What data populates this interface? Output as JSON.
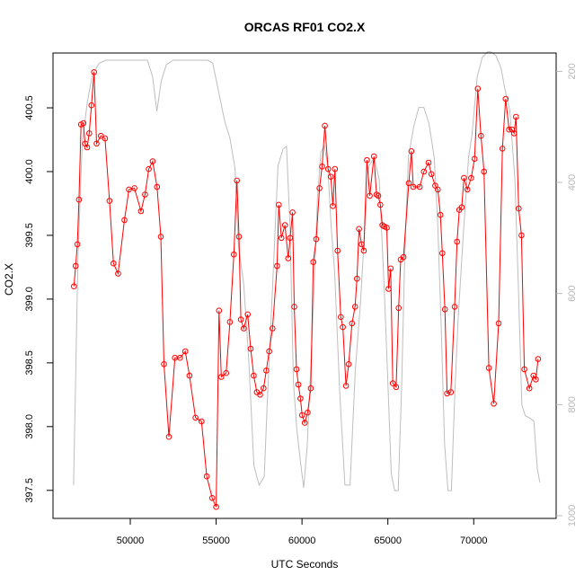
{
  "chart_data": {
    "type": "line",
    "title": "ORCAS RF01 CO2.X",
    "xlabel": "UTC Seconds",
    "ylabel": "CO2.X",
    "xlim": [
      45500,
      74800
    ],
    "ylim": [
      397.28,
      400.93
    ],
    "y2lim": [
      1005,
      167
    ],
    "x_ticks": [
      50000,
      55000,
      60000,
      65000,
      70000
    ],
    "y_ticks": [
      397.5,
      398.0,
      398.5,
      399.0,
      399.5,
      400.0,
      400.5
    ],
    "y2_ticks": [
      200,
      400,
      600,
      800,
      1000
    ],
    "x_tick_labels": [
      "50000",
      "55000",
      "60000",
      "65000",
      "70000"
    ],
    "y_tick_labels": [
      "397.5",
      "398.0",
      "398.5",
      "399.0",
      "399.5",
      "400.0",
      "400.5"
    ],
    "y2_tick_labels": [
      "200",
      "400",
      "600",
      "800",
      "1000"
    ],
    "grid": false,
    "legend": "none",
    "colors": {
      "primary": "#ff0000",
      "secondary": "#bebebe",
      "axis": "#000000",
      "right_axis": "#b8b8b8"
    },
    "series": [
      {
        "axis": "left",
        "style": "line+points",
        "color": "#ff0000",
        "points": [
          [
            46720,
            399.1
          ],
          [
            46820,
            399.26
          ],
          [
            46920,
            399.43
          ],
          [
            47010,
            399.78
          ],
          [
            47130,
            400.37
          ],
          [
            47270,
            400.38
          ],
          [
            47370,
            400.22
          ],
          [
            47490,
            400.19
          ],
          [
            47610,
            400.3
          ],
          [
            47740,
            400.52
          ],
          [
            47890,
            400.78
          ],
          [
            48040,
            400.22
          ],
          [
            48290,
            400.28
          ],
          [
            48530,
            400.26
          ],
          [
            48790,
            399.77
          ],
          [
            49020,
            399.28
          ],
          [
            49290,
            399.2
          ],
          [
            49660,
            399.62
          ],
          [
            49920,
            399.86
          ],
          [
            50240,
            399.87
          ],
          [
            50620,
            399.69
          ],
          [
            50860,
            399.82
          ],
          [
            51080,
            400.02
          ],
          [
            51300,
            400.08
          ],
          [
            51560,
            399.88
          ],
          [
            51780,
            399.49
          ],
          [
            51960,
            398.49
          ],
          [
            52250,
            397.92
          ],
          [
            52600,
            398.54
          ],
          [
            52900,
            398.54
          ],
          [
            53200,
            398.59
          ],
          [
            53450,
            398.4
          ],
          [
            53800,
            398.07
          ],
          [
            54150,
            398.04
          ],
          [
            54450,
            397.61
          ],
          [
            54770,
            397.44
          ],
          [
            55000,
            397.37
          ],
          [
            55170,
            398.91
          ],
          [
            55300,
            398.39
          ],
          [
            55580,
            398.42
          ],
          [
            55800,
            398.82
          ],
          [
            56030,
            399.35
          ],
          [
            56210,
            399.93
          ],
          [
            56330,
            399.49
          ],
          [
            56440,
            398.84
          ],
          [
            56610,
            398.77
          ],
          [
            56840,
            398.88
          ],
          [
            57010,
            398.61
          ],
          [
            57190,
            398.4
          ],
          [
            57370,
            398.27
          ],
          [
            57560,
            398.25
          ],
          [
            57760,
            398.3
          ],
          [
            57920,
            398.44
          ],
          [
            58090,
            398.59
          ],
          [
            58280,
            398.77
          ],
          [
            58550,
            399.26
          ],
          [
            58650,
            399.74
          ],
          [
            58800,
            399.48
          ],
          [
            59010,
            399.58
          ],
          [
            59200,
            399.32
          ],
          [
            59310,
            399.48
          ],
          [
            59450,
            399.68
          ],
          [
            59550,
            398.94
          ],
          [
            59680,
            398.45
          ],
          [
            59790,
            398.33
          ],
          [
            59910,
            398.22
          ],
          [
            60010,
            398.09
          ],
          [
            60160,
            398.03
          ],
          [
            60330,
            398.11
          ],
          [
            60510,
            398.3
          ],
          [
            60660,
            399.29
          ],
          [
            60830,
            399.47
          ],
          [
            61020,
            399.87
          ],
          [
            61170,
            400.04
          ],
          [
            61330,
            400.36
          ],
          [
            61520,
            400.02
          ],
          [
            61680,
            399.96
          ],
          [
            61800,
            399.73
          ],
          [
            61920,
            400.02
          ],
          [
            62070,
            399.38
          ],
          [
            62260,
            398.86
          ],
          [
            62380,
            398.78
          ],
          [
            62560,
            398.32
          ],
          [
            62720,
            398.49
          ],
          [
            62910,
            398.81
          ],
          [
            63090,
            398.94
          ],
          [
            63200,
            399.16
          ],
          [
            63320,
            399.55
          ],
          [
            63470,
            399.43
          ],
          [
            63600,
            399.38
          ],
          [
            63780,
            400.09
          ],
          [
            63950,
            399.81
          ],
          [
            64190,
            400.12
          ],
          [
            64340,
            399.82
          ],
          [
            64440,
            399.81
          ],
          [
            64560,
            399.74
          ],
          [
            64680,
            399.58
          ],
          [
            64790,
            399.57
          ],
          [
            64940,
            399.56
          ],
          [
            65040,
            399.08
          ],
          [
            65160,
            399.24
          ],
          [
            65290,
            398.34
          ],
          [
            65480,
            398.31
          ],
          [
            65630,
            398.93
          ],
          [
            65750,
            399.31
          ],
          [
            65910,
            399.33
          ],
          [
            66220,
            399.91
          ],
          [
            66370,
            400.16
          ],
          [
            66480,
            399.88
          ],
          [
            66850,
            399.88
          ],
          [
            67100,
            400.0
          ],
          [
            67370,
            400.07
          ],
          [
            67540,
            399.98
          ],
          [
            67760,
            399.89
          ],
          [
            67910,
            399.86
          ],
          [
            68060,
            399.66
          ],
          [
            68170,
            399.36
          ],
          [
            68320,
            398.92
          ],
          [
            68450,
            398.26
          ],
          [
            68670,
            398.27
          ],
          [
            68890,
            398.94
          ],
          [
            69030,
            399.45
          ],
          [
            69160,
            399.7
          ],
          [
            69300,
            399.72
          ],
          [
            69430,
            399.95
          ],
          [
            69630,
            399.86
          ],
          [
            69850,
            399.95
          ],
          [
            70050,
            400.1
          ],
          [
            70240,
            400.65
          ],
          [
            70420,
            400.28
          ],
          [
            70600,
            400.0
          ],
          [
            70880,
            398.46
          ],
          [
            71170,
            398.18
          ],
          [
            71450,
            398.81
          ],
          [
            71670,
            400.18
          ],
          [
            71860,
            400.57
          ],
          [
            72060,
            400.33
          ],
          [
            72230,
            400.33
          ],
          [
            72350,
            400.3
          ],
          [
            72460,
            400.43
          ],
          [
            72620,
            399.71
          ],
          [
            72780,
            399.5
          ],
          [
            72950,
            398.45
          ],
          [
            73240,
            398.3
          ],
          [
            73480,
            398.4
          ],
          [
            73620,
            398.37
          ],
          [
            73750,
            398.53
          ]
        ]
      },
      {
        "axis": "right",
        "style": "line",
        "color": "#bebebe",
        "points": [
          [
            46700,
            945
          ],
          [
            46950,
            540
          ],
          [
            47200,
            330
          ],
          [
            47500,
            255
          ],
          [
            47800,
            205
          ],
          [
            48200,
            185
          ],
          [
            48600,
            180
          ],
          [
            49000,
            180
          ],
          [
            50000,
            180
          ],
          [
            51000,
            180
          ],
          [
            51300,
            210
          ],
          [
            51550,
            272
          ],
          [
            51800,
            218
          ],
          [
            52100,
            188
          ],
          [
            52500,
            180
          ],
          [
            53500,
            180
          ],
          [
            54500,
            180
          ],
          [
            54800,
            185
          ],
          [
            55000,
            215
          ],
          [
            55200,
            245
          ],
          [
            55500,
            290
          ],
          [
            55800,
            320
          ],
          [
            56100,
            375
          ],
          [
            56300,
            515
          ],
          [
            56600,
            582
          ],
          [
            56900,
            720
          ],
          [
            57200,
            910
          ],
          [
            57500,
            945
          ],
          [
            57800,
            930
          ],
          [
            58000,
            780
          ],
          [
            58300,
            580
          ],
          [
            58600,
            370
          ],
          [
            58900,
            340
          ],
          [
            59100,
            335
          ],
          [
            59300,
            480
          ],
          [
            59500,
            760
          ],
          [
            59700,
            845
          ],
          [
            59900,
            900
          ],
          [
            60100,
            950
          ],
          [
            60300,
            875
          ],
          [
            60600,
            670
          ],
          [
            60900,
            430
          ],
          [
            61100,
            345
          ],
          [
            61300,
            335
          ],
          [
            61500,
            370
          ],
          [
            61700,
            480
          ],
          [
            61900,
            560
          ],
          [
            62200,
            780
          ],
          [
            62500,
            945
          ],
          [
            62800,
            945
          ],
          [
            63100,
            740
          ],
          [
            63400,
            620
          ],
          [
            63700,
            460
          ],
          [
            63900,
            370
          ],
          [
            64200,
            355
          ],
          [
            64500,
            395
          ],
          [
            64800,
            600
          ],
          [
            65000,
            760
          ],
          [
            65200,
            925
          ],
          [
            65400,
            955
          ],
          [
            65600,
            955
          ],
          [
            65800,
            770
          ],
          [
            66000,
            510
          ],
          [
            66200,
            355
          ],
          [
            66500,
            300
          ],
          [
            66800,
            265
          ],
          [
            67100,
            265
          ],
          [
            67400,
            295
          ],
          [
            67700,
            355
          ],
          [
            67900,
            470
          ],
          [
            68100,
            650
          ],
          [
            68300,
            870
          ],
          [
            68500,
            955
          ],
          [
            68700,
            955
          ],
          [
            68900,
            780
          ],
          [
            69100,
            640
          ],
          [
            69400,
            490
          ],
          [
            69700,
            355
          ],
          [
            69900,
            315
          ],
          [
            70200,
            210
          ],
          [
            70500,
            175
          ],
          [
            70800,
            165
          ],
          [
            71000,
            165
          ],
          [
            71300,
            172
          ],
          [
            71600,
            195
          ],
          [
            71800,
            230
          ],
          [
            72100,
            270
          ],
          [
            72400,
            395
          ],
          [
            72600,
            590
          ],
          [
            72800,
            800
          ],
          [
            73000,
            820
          ],
          [
            73300,
            825
          ],
          [
            73500,
            830
          ],
          [
            73700,
            915
          ],
          [
            73850,
            940
          ]
        ]
      }
    ]
  }
}
